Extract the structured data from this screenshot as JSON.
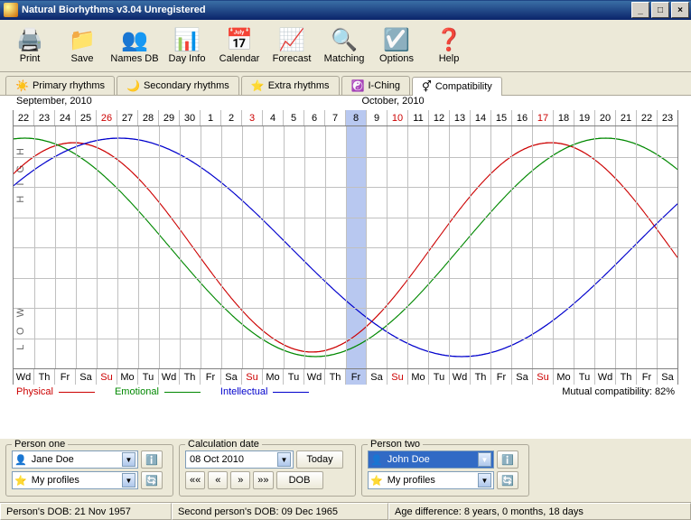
{
  "window": {
    "title": "Natural Biorhythms v3.04 Unregistered"
  },
  "toolbar": [
    {
      "label": "Print",
      "icon": "🖨️"
    },
    {
      "label": "Save",
      "icon": "📁"
    },
    {
      "label": "Names DB",
      "icon": "👥"
    },
    {
      "label": "Day Info",
      "icon": "📊"
    },
    {
      "label": "Calendar",
      "icon": "📅"
    },
    {
      "label": "Forecast",
      "icon": "📈"
    },
    {
      "label": "Matching",
      "icon": "🔍"
    },
    {
      "label": "Options",
      "icon": "☑️"
    },
    {
      "label": "Help",
      "icon": "❓"
    }
  ],
  "tabs": [
    {
      "label": "Primary rhythms",
      "icon": "☀️",
      "active": false
    },
    {
      "label": "Secondary rhythms",
      "icon": "🌙",
      "active": false
    },
    {
      "label": "Extra rhythms",
      "icon": "⭐",
      "active": false
    },
    {
      "label": "I-Ching",
      "icon": "☯️",
      "active": false
    },
    {
      "label": "Compatibility",
      "icon": "⚥",
      "active": true
    }
  ],
  "chart": {
    "left_month": "September, 2010",
    "right_month": "October, 2010",
    "days": [
      22,
      23,
      24,
      25,
      26,
      27,
      28,
      29,
      30,
      1,
      2,
      3,
      4,
      5,
      6,
      7,
      8,
      9,
      10,
      11,
      12,
      13,
      14,
      15,
      16,
      17,
      18,
      19,
      20,
      21,
      22,
      23
    ],
    "weekdays": [
      "Wd",
      "Th",
      "Fr",
      "Sa",
      "Su",
      "Mo",
      "Tu",
      "Wd",
      "Th",
      "Fr",
      "Sa",
      "Su",
      "Mo",
      "Tu",
      "Wd",
      "Th",
      "Fr",
      "Sa",
      "Su",
      "Mo",
      "Tu",
      "Wd",
      "Th",
      "Fr",
      "Sa",
      "Su",
      "Mo",
      "Tu",
      "Wd",
      "Th",
      "Fr",
      "Sa"
    ],
    "red_days": [
      4,
      11,
      18,
      25
    ],
    "today_index": 16,
    "n_days": 32,
    "h_lines": 8,
    "ylabel_high": "H I G H",
    "ylabel_low": "L O W",
    "series": [
      {
        "name": "Physical",
        "color": "#cc0000",
        "period": 23,
        "phase": 0.78,
        "amplitude": 0.92
      },
      {
        "name": "Emotional",
        "color": "#008800",
        "period": 28,
        "phase": 1.45,
        "amplitude": 0.96
      },
      {
        "name": "Intellectual",
        "color": "#0000cc",
        "period": 33,
        "phase": 0.6,
        "amplitude": 0.96
      }
    ],
    "colors": {
      "grid": "#c0c0c0",
      "today_bg": "#b8c8f0",
      "background": "#ffffff"
    },
    "compatibility_label": "Mutual compatibility: 82%"
  },
  "controls": {
    "person_one": {
      "title": "Person one",
      "name": "Jane Doe",
      "profiles": "My profiles"
    },
    "calc": {
      "title": "Calculation date",
      "date": "08 Oct 2010",
      "today": "Today",
      "dob": "DOB"
    },
    "person_two": {
      "title": "Person two",
      "name": "John Doe",
      "profiles": "My profiles"
    }
  },
  "status": {
    "dob1": "Person's DOB: 21 Nov 1957",
    "dob2": "Second person's DOB: 09 Dec 1965",
    "diff": "Age difference: 8 years, 0 months, 18 days"
  }
}
